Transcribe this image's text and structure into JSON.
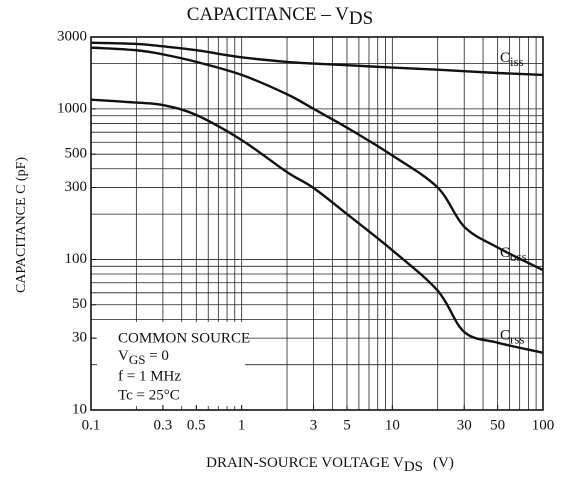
{
  "chart_data": {
    "type": "line",
    "title": "CAPACITANCE – V",
    "title_subscript": "DS",
    "xlabel": "DRAIN-SOURCE VOLTAGE  V",
    "xlabel_subscript": "DS",
    "xlabel_unit": "(V)",
    "ylabel": "CAPACITANCE  C  (pF)",
    "annotations": [
      "COMMON SOURCE",
      "V",
      "GS",
      " = 0",
      "f = 1 MHz",
      "Tc = 25°C"
    ],
    "xscale": "log",
    "yscale": "log",
    "grid": true,
    "xlim": [
      0.1,
      100
    ],
    "ylim": [
      10,
      3000
    ],
    "xticks": [
      0.1,
      0.3,
      0.5,
      1,
      3,
      5,
      10,
      30,
      50,
      100
    ],
    "yticks": [
      10,
      30,
      50,
      100,
      300,
      500,
      1000,
      3000
    ],
    "xgrid": [
      0.2,
      0.3,
      0.4,
      0.5,
      0.6,
      0.7,
      0.8,
      0.9,
      1,
      2,
      3,
      4,
      5,
      6,
      7,
      8,
      9,
      10,
      20,
      30,
      40,
      50,
      60,
      70,
      80,
      90
    ],
    "ygrid": [
      20,
      30,
      40,
      50,
      60,
      70,
      80,
      90,
      100,
      200,
      300,
      400,
      500,
      600,
      700,
      800,
      900,
      1000,
      2000
    ],
    "x": [
      0.1,
      0.2,
      0.3,
      0.5,
      1,
      2,
      3,
      5,
      10,
      20,
      30,
      50,
      100
    ],
    "series": [
      {
        "name": "Ciss",
        "color": "#111111",
        "values": [
          2750,
          2700,
          2600,
          2450,
          2200,
          2050,
          2000,
          1950,
          1880,
          1820,
          1780,
          1730,
          1680
        ]
      },
      {
        "name": "Coss",
        "color": "#111111",
        "values": [
          2550,
          2450,
          2300,
          2050,
          1680,
          1250,
          1000,
          750,
          490,
          300,
          165,
          120,
          85
        ]
      },
      {
        "name": "Crss",
        "color": "#111111",
        "values": [
          1150,
          1100,
          1060,
          910,
          620,
          380,
          298,
          200,
          115,
          62,
          33,
          28,
          24
        ]
      }
    ]
  }
}
